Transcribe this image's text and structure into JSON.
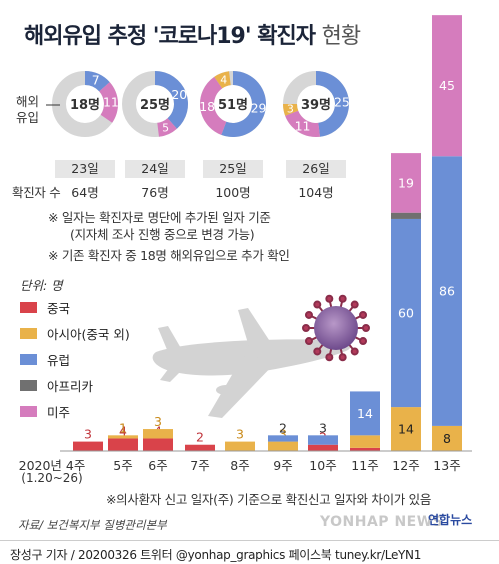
{
  "title": {
    "main": "해외유입 추정 '코로나19' 확진자",
    "suffix": "현황"
  },
  "donut_row": {
    "label_line1": "해외",
    "label_line2": "유입",
    "total_label": "확진자 수"
  },
  "notes": [
    "※ 일자는 확진자로 명단에 추가된 일자 기준",
    "(지자체 조사 진행 중으로 변경 가능)",
    "※ 기존 확진자 중 18명 해외유입으로 추가 확인"
  ],
  "unit_label": "단위: 명",
  "axis_note": "※의사환자 신고 일자(주) 기준으로 확진신고 일자와 차이가 있음",
  "source": "자료/ 보건복지부 질병관리본부",
  "watermark": "YONHAP NEWS",
  "brand": "연합뉴스",
  "footer": "장성구 기자 / 20200326  트위터 @yonhap_graphics  페이스북 tuney.kr/LeYN1",
  "colors": {
    "china": "#d9434a",
    "asia": "#e9b24a",
    "europe": "#6b8fd6",
    "africa": "#707070",
    "americas": "#d57cbd",
    "donut_bg": "#d6d6d6",
    "title": "#1b2438"
  },
  "decoration": [
    "airplane-icon",
    "virus-icon"
  ],
  "chart_data": [
    {
      "type": "pie",
      "name": "daily-donuts",
      "days": [
        {
          "date": "23일",
          "center": "18명",
          "total": "64명",
          "slices": [
            {
              "group": "유럽",
              "value": 7
            },
            {
              "group": "미주",
              "value": 11
            }
          ]
        },
        {
          "date": "24일",
          "center": "25명",
          "total": "76명",
          "slices": [
            {
              "group": "유럽",
              "value": 20
            },
            {
              "group": "미주",
              "value": 5
            }
          ]
        },
        {
          "date": "25일",
          "center": "51명",
          "total": "100명",
          "slices": [
            {
              "group": "유럽",
              "value": 29
            },
            {
              "group": "미주",
              "value": 18
            },
            {
              "group": "아시아(중국 외)",
              "value": 4
            }
          ]
        },
        {
          "date": "26일",
          "center": "39명",
          "total": "104명",
          "slices": [
            {
              "group": "유럽",
              "value": 25
            },
            {
              "group": "미주",
              "value": 11
            },
            {
              "group": "아시아(중국 외)",
              "value": 3
            }
          ]
        }
      ]
    },
    {
      "type": "bar",
      "stacked": true,
      "name": "weekly-stacked-bars",
      "categories": [
        "2020년 4주",
        "5주",
        "6주",
        "7주",
        "8주",
        "9주",
        "10주",
        "11주",
        "12주",
        "13주"
      ],
      "category_sublabels": [
        "(1.20~26)",
        "",
        "",
        "",
        "",
        "",
        "",
        "",
        "",
        ""
      ],
      "series": [
        {
          "name": "중국",
          "values": [
            3,
            4,
            4,
            2,
            0,
            0,
            2,
            1,
            0,
            0
          ]
        },
        {
          "name": "아시아(중국 외)",
          "values": [
            0,
            1,
            3,
            0,
            3,
            3,
            0,
            4,
            14,
            8
          ]
        },
        {
          "name": "유럽",
          "values": [
            0,
            0,
            0,
            0,
            0,
            2,
            3,
            14,
            60,
            86
          ]
        },
        {
          "name": "아프리카",
          "values": [
            0,
            0,
            0,
            0,
            0,
            0,
            0,
            0,
            2,
            0
          ]
        },
        {
          "name": "미주",
          "values": [
            0,
            0,
            0,
            0,
            0,
            0,
            0,
            0,
            19,
            45
          ]
        }
      ],
      "legend": [
        "중국",
        "아시아(중국 외)",
        "유럽",
        "아프리카",
        "미주"
      ],
      "legend_position": "left",
      "ylim": [
        0,
        140
      ],
      "grid": false
    }
  ]
}
